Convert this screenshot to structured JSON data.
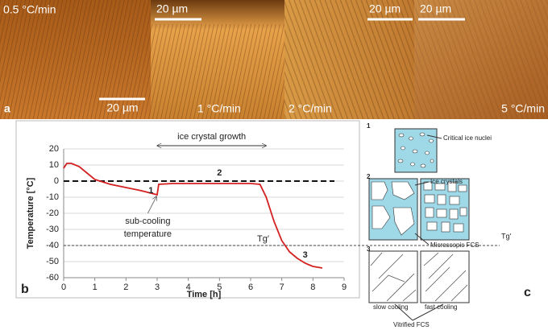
{
  "micrographs": {
    "panel_label": "a",
    "images": [
      {
        "rate": "0.5 °C/min",
        "scale": "20 µm"
      },
      {
        "rate": "1 °C/min",
        "scale": "20 µm"
      },
      {
        "rate": "2 °C/min",
        "scale": "20 µm"
      },
      {
        "rate": "5 °C/min",
        "scale": "20 µm"
      }
    ]
  },
  "chart_data": {
    "type": "line",
    "panel_label": "b",
    "x_label": "Time [h]",
    "y_label": "Temperature [°C]",
    "x": [
      0,
      0.1,
      0.25,
      0.5,
      0.75,
      1,
      1.5,
      2,
      2.5,
      2.9,
      3.0,
      3.05,
      3.5,
      4,
      5,
      6,
      6.3,
      6.5,
      6.75,
      7,
      7.25,
      7.5,
      7.75,
      8,
      8.3
    ],
    "series": [
      {
        "name": "Temperature",
        "color": "#d42020",
        "values": [
          8,
          11,
          11,
          9,
          5,
          1,
          -2,
          -4,
          -6,
          -8,
          -8.5,
          -2,
          -1.5,
          -1.5,
          -1.5,
          -1.5,
          -2,
          -10,
          -25,
          -37,
          -44,
          -48,
          -51,
          -53,
          -54
        ]
      }
    ],
    "xlim": [
      0,
      9
    ],
    "xticks": [
      0,
      1,
      2,
      3,
      4,
      5,
      6,
      7,
      8,
      9
    ],
    "ylim": [
      -60,
      20
    ],
    "yticks": [
      -60,
      -50,
      -40,
      -30,
      -20,
      -10,
      0,
      10,
      20
    ],
    "grid": true,
    "reference_lines": [
      {
        "y": 0,
        "style": "bold-dashed"
      },
      {
        "y": -40,
        "style": "thin-dashed"
      }
    ],
    "annotations": [
      "ice crystal growth",
      "1",
      "2",
      "3",
      "sub-cooling",
      "temperature",
      "Tg′"
    ]
  },
  "diagram": {
    "panel_label": "c",
    "steps": [
      "1",
      "2",
      "3"
    ],
    "labels": [
      "Critical ice nuclei",
      "Ice crystals",
      "Microscopic FCS",
      "slow cooling",
      "fast cooling",
      "Vitrified FCS",
      "Tg′"
    ]
  }
}
